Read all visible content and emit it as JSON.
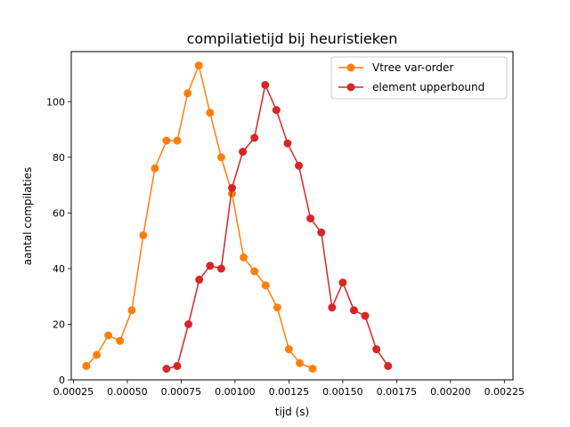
{
  "chart_data": {
    "type": "line",
    "title": "compilatietijd bij heuristieken",
    "xlabel": "tijd (s)",
    "ylabel": "aantal compilaties",
    "xlim": [
      0.00024,
      0.00229
    ],
    "ylim": [
      0,
      118
    ],
    "x_ticks": [
      0.00025,
      0.0005,
      0.00075,
      0.001,
      0.00125,
      0.0015,
      0.00175,
      0.002,
      0.00225
    ],
    "x_tick_labels": [
      "0.00025",
      "0.00050",
      "0.00075",
      "0.00100",
      "0.00125",
      "0.00150",
      "0.00175",
      "0.00200",
      "0.00225"
    ],
    "y_ticks": [
      0,
      20,
      40,
      60,
      80,
      100
    ],
    "y_tick_labels": [
      "0",
      "20",
      "40",
      "60",
      "80",
      "100"
    ],
    "grid": false,
    "legend": "top-right",
    "series": [
      {
        "name": "Vtree var-order",
        "color": "#ff7f0e",
        "marker": "circle",
        "x": [
          0.00031,
          0.000358,
          0.000412,
          0.000466,
          0.000521,
          0.000574,
          0.000628,
          0.000682,
          0.000732,
          0.00078,
          0.000832,
          0.000884,
          0.000936,
          0.000986,
          0.00104,
          0.00109,
          0.001142,
          0.001196,
          0.00125,
          0.0013,
          0.00136
        ],
        "y": [
          5,
          9,
          16,
          14,
          25,
          52,
          76,
          86,
          86,
          103,
          113,
          96,
          80,
          67,
          44,
          39,
          34,
          26,
          11,
          6,
          4
        ]
      },
      {
        "name": "element upperbound",
        "color": "#d62728",
        "marker": "circle",
        "x": [
          0.000682,
          0.000732,
          0.000784,
          0.000834,
          0.000884,
          0.000936,
          0.000986,
          0.001036,
          0.00109,
          0.00114,
          0.001192,
          0.001244,
          0.001296,
          0.00135,
          0.0014,
          0.00145,
          0.0015,
          0.001552,
          0.001604,
          0.001656,
          0.00171
        ],
        "y": [
          4,
          5,
          20,
          36,
          41,
          40,
          69,
          82,
          87,
          106,
          97,
          85,
          77,
          58,
          53,
          26,
          35,
          25,
          23,
          11,
          5
        ]
      }
    ]
  }
}
